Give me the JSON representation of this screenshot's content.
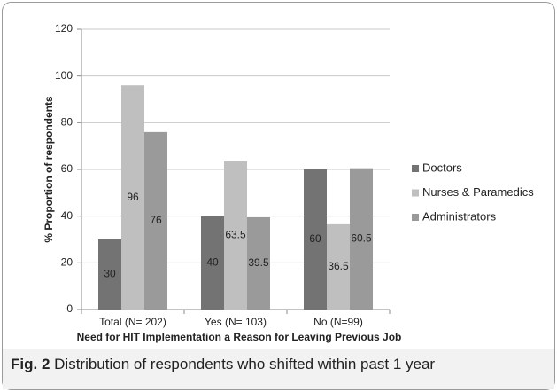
{
  "chart_data": {
    "type": "bar",
    "categories": [
      "Total (N= 202)",
      "Yes (N= 103)",
      "No (N=99)"
    ],
    "series": [
      {
        "name": "Doctors",
        "color": "#737373",
        "values": [
          30,
          40,
          60
        ]
      },
      {
        "name": "Nurses & Paramedics",
        "color": "#bfbfbf",
        "values": [
          96,
          63.5,
          36.5
        ]
      },
      {
        "name": "Administrators",
        "color": "#9a9a9a",
        "values": [
          76,
          39.5,
          60.5
        ]
      }
    ],
    "ylabel": "% Proportion of respondents",
    "xlabel": "Need for HIT Implementation a Reason for Leaving Previous Job",
    "ylim": [
      0,
      120
    ],
    "yticks": [
      0,
      20,
      40,
      60,
      80,
      100,
      120
    ],
    "grid": true,
    "legend": "right"
  },
  "caption": {
    "label": "Fig. 2",
    "text": "Distribution of respondents who shifted within past 1 year"
  }
}
